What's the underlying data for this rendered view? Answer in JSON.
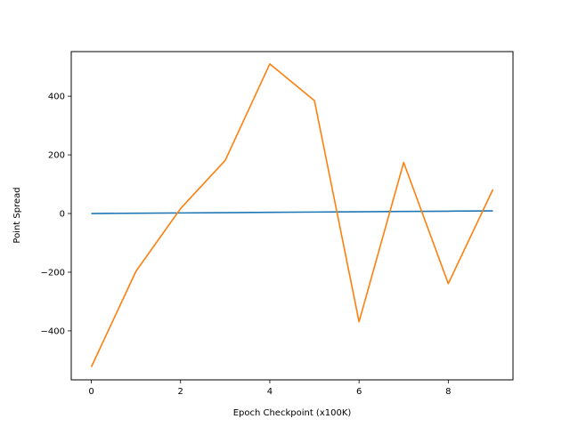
{
  "chart_data": {
    "type": "line",
    "title": "",
    "xlabel": "Epoch Checkpoint (x100K)",
    "ylabel": "Point Spread",
    "x": [
      0,
      1,
      2,
      3,
      4,
      5,
      6,
      7,
      8,
      9
    ],
    "xlim": [
      -0.45,
      9.45
    ],
    "ylim": [
      -567,
      552
    ],
    "xticks": [
      0,
      2,
      4,
      6,
      8
    ],
    "yticks": [
      -400,
      -200,
      0,
      200,
      400
    ],
    "xtick_labels": [
      "0",
      "2",
      "4",
      "6",
      "8"
    ],
    "ytick_labels": [
      "−400",
      "−200",
      "0",
      "200",
      "400"
    ],
    "grid": false,
    "legend": "none",
    "series": [
      {
        "color": "#1f77b4",
        "values": [
          0,
          1,
          2,
          3,
          4,
          5,
          6,
          7,
          8,
          9
        ]
      },
      {
        "color": "#ff7f0e",
        "values": [
          -523,
          -197,
          17,
          181,
          510,
          385,
          -369,
          174,
          -239,
          82
        ]
      }
    ]
  }
}
